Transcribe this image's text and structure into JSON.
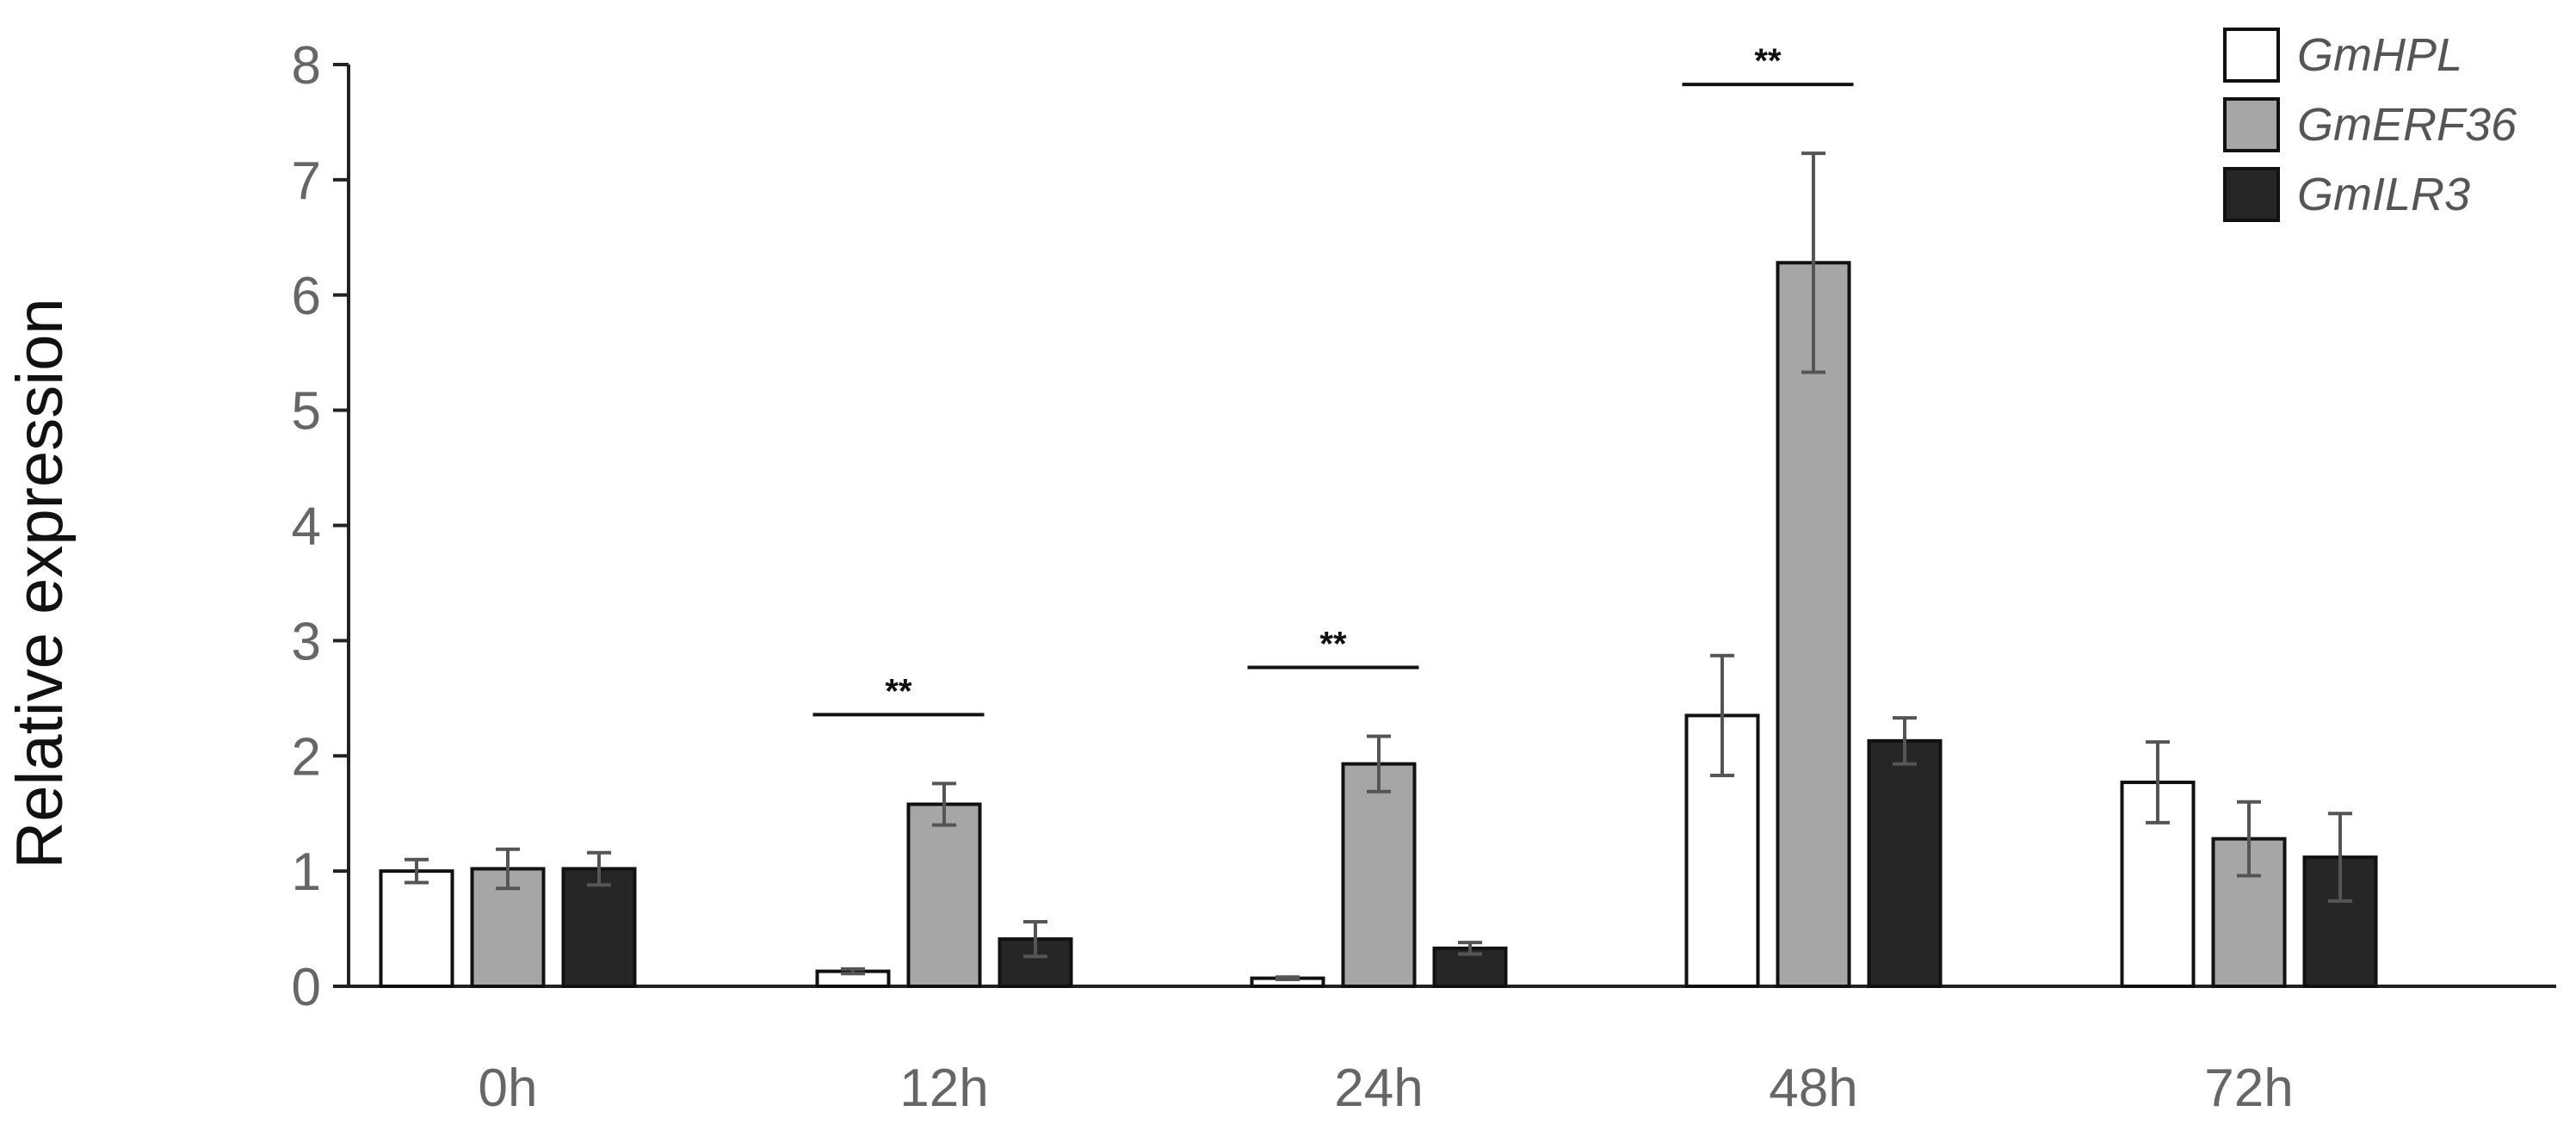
{
  "chart_data": {
    "type": "bar",
    "ylabel": "Relative expression",
    "xlabel": "",
    "ylim": [
      0,
      8
    ],
    "yticks": [
      0,
      1,
      2,
      3,
      4,
      5,
      6,
      7,
      8
    ],
    "categories": [
      "0h",
      "12h",
      "24h",
      "48h",
      "72h"
    ],
    "legend_position": "top-right",
    "grid": false,
    "series": [
      {
        "name": "GmHPL",
        "color": "#ffffff",
        "values": [
          1.0,
          0.13,
          0.07,
          2.35,
          1.77
        ],
        "errors": [
          0.1,
          0.02,
          0.01,
          0.52,
          0.35
        ]
      },
      {
        "name": "GmERF36",
        "color": "#a6a6a6",
        "values": [
          1.02,
          1.58,
          1.93,
          6.28,
          1.28
        ],
        "errors": [
          0.17,
          0.18,
          0.24,
          0.95,
          0.32
        ]
      },
      {
        "name": "GmILR3",
        "color": "#262626",
        "values": [
          1.02,
          0.41,
          0.33,
          2.13,
          1.12
        ],
        "errors": [
          0.14,
          0.15,
          0.05,
          0.2,
          0.38
        ]
      }
    ],
    "significance": [
      {
        "category": "12h",
        "label": "**"
      },
      {
        "category": "24h",
        "label": "**"
      },
      {
        "category": "48h",
        "label": "**"
      }
    ]
  }
}
